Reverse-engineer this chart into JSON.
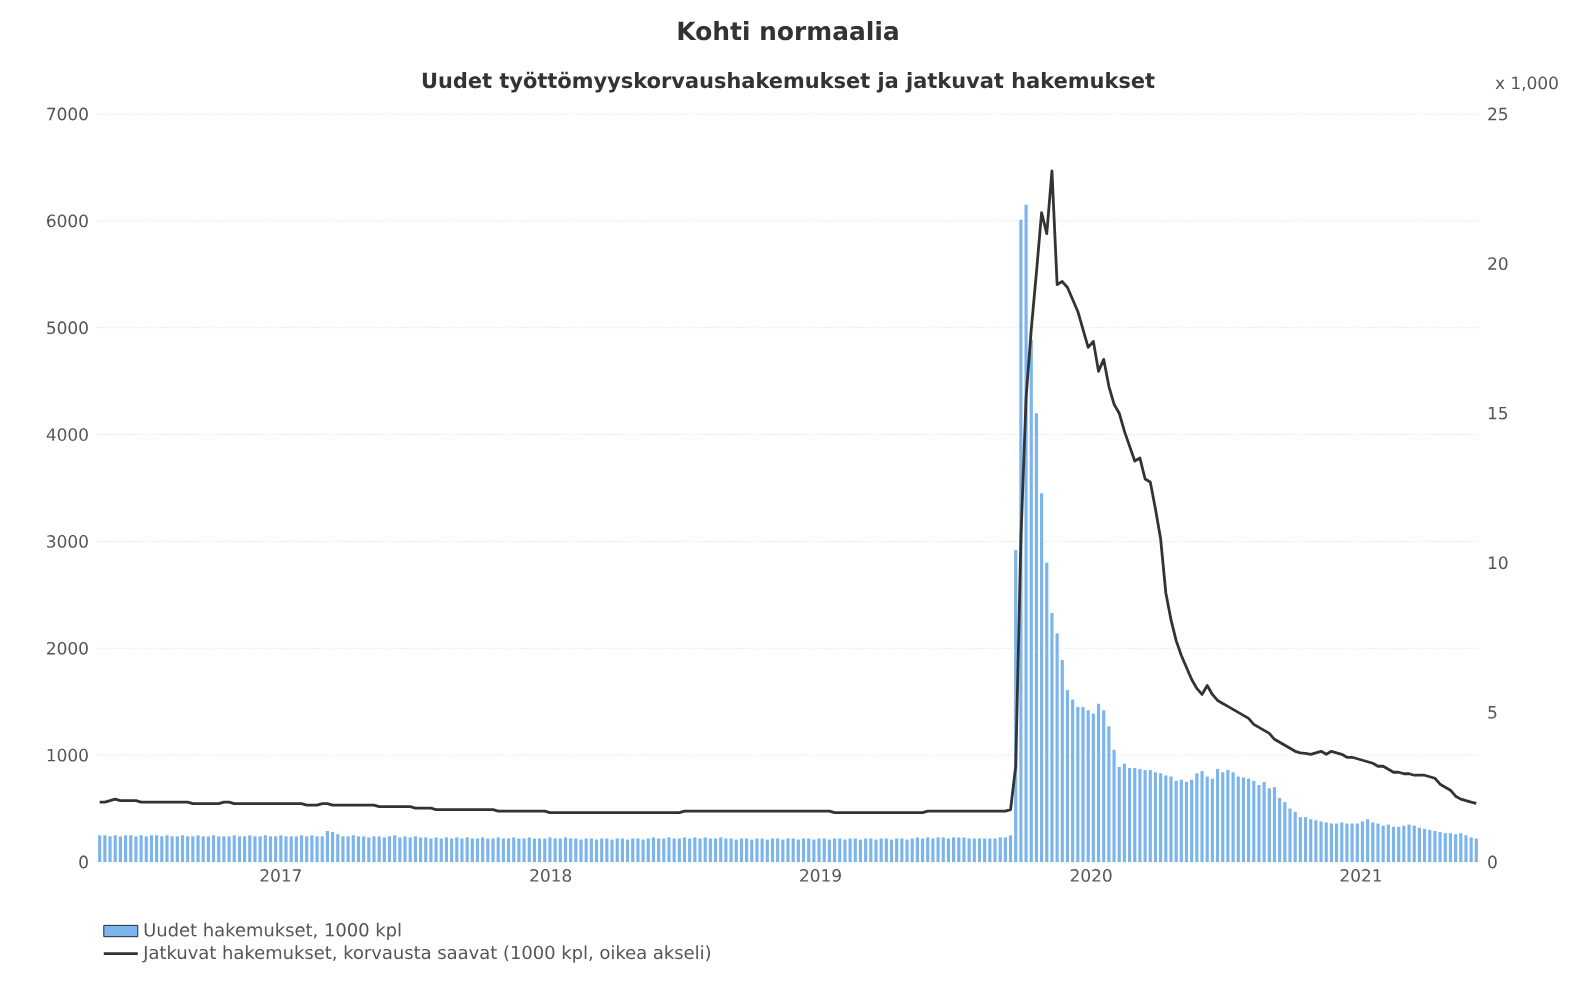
{
  "chart_data": {
    "type": "bar",
    "title": "Kohti normaalia",
    "subtitle": "Uudet työttömyyskorvaushakemukset ja jatkuvat hakemukset",
    "y2label": "x 1,000",
    "x": [
      "2016-10-29",
      "2016-11-05",
      "2016-11-12",
      "2016-11-19",
      "2016-11-26",
      "2016-12-03",
      "2016-12-10",
      "2016-12-17",
      "2016-12-24",
      "2016-12-31",
      "2017-01-07",
      "2017-01-14",
      "2017-01-21",
      "2017-01-28",
      "2017-02-04",
      "2017-02-11",
      "2017-02-18",
      "2017-02-25",
      "2017-03-04",
      "2017-03-11",
      "2017-03-18",
      "2017-03-25",
      "2017-04-01",
      "2017-04-08",
      "2017-04-15",
      "2017-04-22",
      "2017-04-29",
      "2017-05-06",
      "2017-05-13",
      "2017-05-20",
      "2017-05-27",
      "2017-06-03",
      "2017-06-10",
      "2017-06-17",
      "2017-06-24",
      "2017-07-01",
      "2017-07-08",
      "2017-07-15",
      "2017-07-22",
      "2017-07-29",
      "2017-08-05",
      "2017-08-12",
      "2017-08-19",
      "2017-08-26",
      "2017-09-02",
      "2017-09-09",
      "2017-09-16",
      "2017-09-23",
      "2017-09-30",
      "2017-10-07",
      "2017-10-14",
      "2017-10-21",
      "2017-10-28",
      "2017-11-04",
      "2017-11-11",
      "2017-11-18",
      "2017-11-25",
      "2017-12-02",
      "2017-12-09",
      "2017-12-16",
      "2017-12-23",
      "2017-12-30",
      "2018-01-06",
      "2018-01-13",
      "2018-01-20",
      "2018-01-27",
      "2018-02-03",
      "2018-02-10",
      "2018-02-17",
      "2018-02-24",
      "2018-03-03",
      "2018-03-10",
      "2018-03-17",
      "2018-03-24",
      "2018-03-31",
      "2018-04-07",
      "2018-04-14",
      "2018-04-21",
      "2018-04-28",
      "2018-05-05",
      "2018-05-12",
      "2018-05-19",
      "2018-05-26",
      "2018-06-02",
      "2018-06-09",
      "2018-06-16",
      "2018-06-23",
      "2018-06-30",
      "2018-07-07",
      "2018-07-14",
      "2018-07-21",
      "2018-07-28",
      "2018-08-04",
      "2018-08-11",
      "2018-08-18",
      "2018-08-25",
      "2018-09-01",
      "2018-09-08",
      "2018-09-15",
      "2018-09-22",
      "2018-09-29",
      "2018-10-06",
      "2018-10-13",
      "2018-10-20",
      "2018-10-27",
      "2018-11-03",
      "2018-11-10",
      "2018-11-17",
      "2018-11-24",
      "2018-12-01",
      "2018-12-08",
      "2018-12-15",
      "2018-12-22",
      "2018-12-29",
      "2019-01-05",
      "2019-01-12",
      "2019-01-19",
      "2019-01-26",
      "2019-02-02",
      "2019-02-09",
      "2019-02-16",
      "2019-02-23",
      "2019-03-02",
      "2019-03-09",
      "2019-03-16",
      "2019-03-23",
      "2019-03-30",
      "2019-04-06",
      "2019-04-13",
      "2019-04-20",
      "2019-04-27",
      "2019-05-04",
      "2019-05-11",
      "2019-05-18",
      "2019-05-25",
      "2019-06-01",
      "2019-06-08",
      "2019-06-15",
      "2019-06-22",
      "2019-06-29",
      "2019-07-06",
      "2019-07-13",
      "2019-07-20",
      "2019-07-27",
      "2019-08-03",
      "2019-08-10",
      "2019-08-17",
      "2019-08-24",
      "2019-08-31",
      "2019-09-07",
      "2019-09-14",
      "2019-09-21",
      "2019-09-28",
      "2019-10-05",
      "2019-10-12",
      "2019-10-19",
      "2019-10-26",
      "2019-11-02",
      "2019-11-09",
      "2019-11-16",
      "2019-11-23",
      "2019-11-30",
      "2019-12-07",
      "2019-12-14",
      "2019-12-21",
      "2019-12-28",
      "2020-01-04",
      "2020-01-11",
      "2020-01-18",
      "2020-01-25",
      "2020-02-01",
      "2020-02-08",
      "2020-02-15",
      "2020-02-22",
      "2020-02-29",
      "2020-03-07",
      "2020-03-14",
      "2020-03-21",
      "2020-03-28",
      "2020-04-04",
      "2020-04-11",
      "2020-04-18",
      "2020-04-25",
      "2020-05-02",
      "2020-05-09",
      "2020-05-16",
      "2020-05-23",
      "2020-05-30",
      "2020-06-06",
      "2020-06-13",
      "2020-06-20",
      "2020-06-27",
      "2020-07-04",
      "2020-07-11",
      "2020-07-18",
      "2020-07-25",
      "2020-08-01",
      "2020-08-08",
      "2020-08-15",
      "2020-08-22",
      "2020-08-29",
      "2020-09-05",
      "2020-09-12",
      "2020-09-19",
      "2020-09-26",
      "2020-10-03",
      "2020-10-10",
      "2020-10-17",
      "2020-10-24",
      "2020-10-31",
      "2020-11-07",
      "2020-11-14",
      "2020-11-21",
      "2020-11-28",
      "2020-12-05",
      "2020-12-12",
      "2020-12-19",
      "2020-12-26",
      "2021-01-02",
      "2021-01-09",
      "2021-01-16",
      "2021-01-23",
      "2021-01-30",
      "2021-02-06",
      "2021-02-13",
      "2021-02-20",
      "2021-02-27",
      "2021-03-06",
      "2021-03-13",
      "2021-03-20",
      "2021-03-27",
      "2021-04-03",
      "2021-04-10",
      "2021-04-17",
      "2021-04-24",
      "2021-05-01",
      "2021-05-08",
      "2021-05-15",
      "2021-05-22",
      "2021-05-29",
      "2021-06-05",
      "2021-06-12",
      "2021-06-19",
      "2021-06-26",
      "2021-07-03",
      "2021-07-10",
      "2021-07-17",
      "2021-07-24",
      "2021-07-31",
      "2021-08-07",
      "2021-08-14",
      "2021-08-21",
      "2021-08-28",
      "2021-09-04",
      "2021-09-11",
      "2021-09-18",
      "2021-09-25",
      "2021-10-02",
      "2021-10-09",
      "2021-10-16",
      "2021-10-23",
      "2021-10-30",
      "2021-11-06",
      "2021-11-13",
      "2021-11-20",
      "2021-11-27",
      "2021-12-04"
    ],
    "xlim": [
      "2016-10-24",
      "2021-12-09"
    ],
    "xticks": [
      {
        "value": "2017-07-01",
        "label": "2017"
      },
      {
        "value": "2018-07-01",
        "label": "2018"
      },
      {
        "value": "2019-07-01",
        "label": "2019"
      },
      {
        "value": "2020-07-01",
        "label": "2020"
      },
      {
        "value": "2021-07-01",
        "label": "2021"
      }
    ],
    "ylim": [
      0,
      7000
    ],
    "yticks": [
      0,
      1000,
      2000,
      3000,
      4000,
      5000,
      6000,
      7000
    ],
    "y2lim": [
      0,
      25
    ],
    "y2ticks": [
      0,
      5,
      10,
      15,
      20,
      25
    ],
    "grid": "y",
    "legend": "bottom left",
    "series": [
      {
        "name": "Uudet hakemukset, 1000 kpl",
        "color": "#7cb5ec",
        "values": [
          250,
          250,
          240,
          250,
          240,
          250,
          250,
          240,
          250,
          240,
          250,
          250,
          240,
          250,
          240,
          240,
          250,
          240,
          240,
          250,
          240,
          240,
          250,
          240,
          240,
          240,
          250,
          240,
          240,
          250,
          240,
          240,
          250,
          240,
          240,
          250,
          240,
          240,
          240,
          250,
          240,
          250,
          240,
          240,
          290,
          280,
          260,
          240,
          240,
          250,
          240,
          240,
          230,
          240,
          240,
          230,
          240,
          250,
          230,
          240,
          230,
          240,
          230,
          230,
          220,
          230,
          220,
          230,
          220,
          230,
          220,
          230,
          220,
          220,
          230,
          220,
          220,
          230,
          220,
          220,
          230,
          220,
          220,
          230,
          220,
          220,
          220,
          230,
          220,
          220,
          230,
          220,
          220,
          210,
          220,
          220,
          210,
          220,
          220,
          210,
          220,
          220,
          210,
          220,
          220,
          210,
          220,
          230,
          220,
          220,
          230,
          220,
          220,
          230,
          220,
          230,
          220,
          230,
          220,
          220,
          230,
          220,
          220,
          210,
          220,
          220,
          210,
          220,
          220,
          210,
          220,
          220,
          210,
          220,
          220,
          210,
          220,
          220,
          210,
          220,
          220,
          210,
          220,
          220,
          210,
          220,
          220,
          210,
          220,
          220,
          210,
          220,
          220,
          210,
          220,
          220,
          210,
          220,
          230,
          220,
          230,
          220,
          230,
          230,
          220,
          230,
          230,
          230,
          220,
          220,
          220,
          220,
          220,
          220,
          230,
          230,
          250,
          2920,
          6010,
          6150,
          4890,
          4200,
          3450,
          2800,
          2330,
          2140,
          1890,
          1610,
          1520,
          1450,
          1450,
          1420,
          1390,
          1480,
          1420,
          1270,
          1050,
          890,
          920,
          880,
          880,
          870,
          860,
          860,
          840,
          830,
          810,
          800,
          760,
          770,
          750,
          770,
          830,
          850,
          800,
          780,
          870,
          840,
          860,
          840,
          800,
          790,
          780,
          760,
          720,
          750,
          690,
          700,
          600,
          560,
          500,
          470,
          420,
          420,
          400,
          390,
          380,
          370,
          360,
          360,
          370,
          360,
          360,
          360,
          380,
          400,
          370,
          360,
          340,
          350,
          330,
          330,
          340,
          350,
          340,
          320,
          310,
          300,
          290,
          280,
          270,
          270,
          260,
          270,
          250,
          230,
          220
        ]
      },
      {
        "name": "Jatkuvat hakemukset, korvausta saavat (1000 kpl, oikea akseli)",
        "type": "line",
        "axis": "y2",
        "color": "#333333",
        "values": [
          2.0,
          2.0,
          2.05,
          2.1,
          2.05,
          2.05,
          2.05,
          2.05,
          2.0,
          2.0,
          2.0,
          2.0,
          2.0,
          2.0,
          2.0,
          2.0,
          2.0,
          2.0,
          1.95,
          1.95,
          1.95,
          1.95,
          1.95,
          1.95,
          2.0,
          2.0,
          1.95,
          1.95,
          1.95,
          1.95,
          1.95,
          1.95,
          1.95,
          1.95,
          1.95,
          1.95,
          1.95,
          1.95,
          1.95,
          1.95,
          1.9,
          1.9,
          1.9,
          1.95,
          1.95,
          1.9,
          1.9,
          1.9,
          1.9,
          1.9,
          1.9,
          1.9,
          1.9,
          1.9,
          1.85,
          1.85,
          1.85,
          1.85,
          1.85,
          1.85,
          1.85,
          1.8,
          1.8,
          1.8,
          1.8,
          1.75,
          1.75,
          1.75,
          1.75,
          1.75,
          1.75,
          1.75,
          1.75,
          1.75,
          1.75,
          1.75,
          1.75,
          1.7,
          1.7,
          1.7,
          1.7,
          1.7,
          1.7,
          1.7,
          1.7,
          1.7,
          1.7,
          1.65,
          1.65,
          1.65,
          1.65,
          1.65,
          1.65,
          1.65,
          1.65,
          1.65,
          1.65,
          1.65,
          1.65,
          1.65,
          1.65,
          1.65,
          1.65,
          1.65,
          1.65,
          1.65,
          1.65,
          1.65,
          1.65,
          1.65,
          1.65,
          1.65,
          1.65,
          1.7,
          1.7,
          1.7,
          1.7,
          1.7,
          1.7,
          1.7,
          1.7,
          1.7,
          1.7,
          1.7,
          1.7,
          1.7,
          1.7,
          1.7,
          1.7,
          1.7,
          1.7,
          1.7,
          1.7,
          1.7,
          1.7,
          1.7,
          1.7,
          1.7,
          1.7,
          1.7,
          1.7,
          1.7,
          1.65,
          1.65,
          1.65,
          1.65,
          1.65,
          1.65,
          1.65,
          1.65,
          1.65,
          1.65,
          1.65,
          1.65,
          1.65,
          1.65,
          1.65,
          1.65,
          1.65,
          1.65,
          1.7,
          1.7,
          1.7,
          1.7,
          1.7,
          1.7,
          1.7,
          1.7,
          1.7,
          1.7,
          1.7,
          1.7,
          1.7,
          1.7,
          1.7,
          1.7,
          1.75,
          3.2,
          10.8,
          15.5,
          17.8,
          19.7,
          21.7,
          21.0,
          23.1,
          19.3,
          19.4,
          19.2,
          18.8,
          18.4,
          17.8,
          17.2,
          17.4,
          16.4,
          16.8,
          15.9,
          15.3,
          15.0,
          14.4,
          13.9,
          13.4,
          13.5,
          12.8,
          12.7,
          11.8,
          10.8,
          9.0,
          8.1,
          7.4,
          6.9,
          6.5,
          6.1,
          5.8,
          5.6,
          5.9,
          5.6,
          5.4,
          5.3,
          5.2,
          5.1,
          5.0,
          4.9,
          4.8,
          4.6,
          4.5,
          4.4,
          4.3,
          4.1,
          4.0,
          3.9,
          3.8,
          3.7,
          3.65,
          3.63,
          3.6,
          3.65,
          3.7,
          3.6,
          3.7,
          3.65,
          3.6,
          3.5,
          3.5,
          3.45,
          3.4,
          3.35,
          3.3,
          3.2,
          3.2,
          3.1,
          3.0,
          3.0,
          2.95,
          2.95,
          2.9,
          2.9,
          2.9,
          2.85,
          2.8,
          2.6,
          2.5,
          2.4,
          2.2,
          2.1,
          2.05,
          2.0,
          1.96
        ]
      }
    ]
  }
}
